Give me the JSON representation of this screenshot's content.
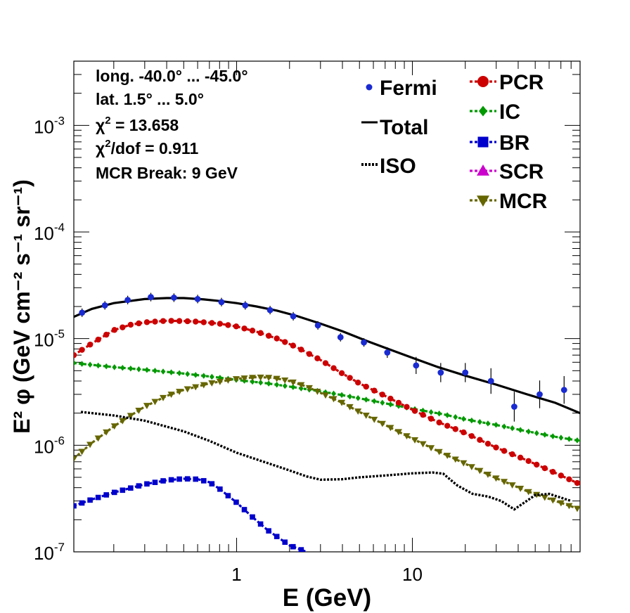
{
  "chart_data": {
    "type": "line",
    "xscale": "log",
    "yscale": "log",
    "xlim": [
      0.1185,
      90
    ],
    "ylim": [
      1e-07,
      0.004
    ],
    "xlabel": "E (GeV)",
    "ylabel": "E² φ (GeV cm⁻² s⁻¹ sr⁻¹)",
    "x_tick_labels": [
      {
        "value": 1,
        "label": "1"
      },
      {
        "value": 10,
        "label": "10"
      }
    ],
    "y_tick_labels": [
      {
        "value": 1e-07,
        "base": "10",
        "exp": "-7"
      },
      {
        "value": 1e-06,
        "base": "10",
        "exp": "-6"
      },
      {
        "value": 1e-05,
        "base": "10",
        "exp": "-5"
      },
      {
        "value": 0.0001,
        "base": "10",
        "exp": "-4"
      },
      {
        "value": 0.001,
        "base": "10",
        "exp": "-3"
      }
    ],
    "info": {
      "longitude": "long. -40.0° ... -45.0°",
      "latitude": "lat. 1.5° ... 5.0°",
      "chi2_prefix": "χ",
      "chi2_value": " = 13.658",
      "chi2dof_prefix": "χ",
      "chi2dof_value": "/dof = 0.911",
      "break_label": "MCR Break:  9 GeV"
    },
    "fermi": {
      "name": "Fermi",
      "color": "#1a2bd1",
      "points": [
        {
          "x": 0.132,
          "y": 1.75e-05,
          "err": 0.04
        },
        {
          "x": 0.178,
          "y": 2.05e-05,
          "err": 0.04
        },
        {
          "x": 0.24,
          "y": 2.3e-05,
          "err": 0.04
        },
        {
          "x": 0.325,
          "y": 2.45e-05,
          "err": 0.04
        },
        {
          "x": 0.44,
          "y": 2.42e-05,
          "err": 0.04
        },
        {
          "x": 0.6,
          "y": 2.35e-05,
          "err": 0.04
        },
        {
          "x": 0.82,
          "y": 2.2e-05,
          "err": 0.04
        },
        {
          "x": 1.12,
          "y": 2.05e-05,
          "err": 0.04
        },
        {
          "x": 1.55,
          "y": 1.85e-05,
          "err": 0.04
        },
        {
          "x": 2.1,
          "y": 1.62e-05,
          "err": 0.04
        },
        {
          "x": 2.9,
          "y": 1.33e-05,
          "err": 0.04
        },
        {
          "x": 3.9,
          "y": 1.03e-05,
          "err": 0.04
        },
        {
          "x": 5.3,
          "y": 9.2e-06,
          "err": 0.04
        },
        {
          "x": 7.2,
          "y": 7.4e-06,
          "err": 0.05
        },
        {
          "x": 10.5,
          "y": 5.6e-06,
          "err": 0.08
        },
        {
          "x": 14.5,
          "y": 4.8e-06,
          "err": 0.09
        },
        {
          "x": 20,
          "y": 4.8e-06,
          "err": 0.09
        },
        {
          "x": 28,
          "y": 4e-06,
          "err": 0.12
        },
        {
          "x": 38,
          "y": 2.3e-06,
          "err": 0.14
        },
        {
          "x": 53,
          "y": 3e-06,
          "err": 0.13
        },
        {
          "x": 73,
          "y": 3.3e-06,
          "err": 0.13
        }
      ]
    },
    "series": [
      {
        "name": "Total",
        "color": "#000000",
        "style": "solid",
        "marker": "none",
        "x": [
          0.1185,
          0.15,
          0.2,
          0.3,
          0.4,
          0.5,
          0.65,
          0.8,
          1,
          1.3,
          1.7,
          2.2,
          3,
          4,
          5.5,
          7,
          10,
          14,
          20,
          30,
          45,
          65,
          90
        ],
        "y": [
          1.6e-05,
          1.9e-05,
          2.15e-05,
          2.35e-05,
          2.4e-05,
          2.4e-05,
          2.33e-05,
          2.25e-05,
          2.15e-05,
          2e-05,
          1.83e-05,
          1.63e-05,
          1.38e-05,
          1.17e-05,
          9.5e-06,
          8.2e-06,
          6.6e-06,
          5.4e-06,
          4.5e-06,
          3.7e-06,
          3e-06,
          2.5e-06,
          2e-06
        ]
      },
      {
        "name": "ISO",
        "color": "#000000",
        "style": "dotted",
        "marker": "none",
        "x": [
          0.13,
          0.2,
          0.3,
          0.5,
          0.7,
          1,
          1.5,
          2,
          2.5,
          3,
          4,
          5,
          7,
          10,
          13,
          15,
          18,
          22,
          27,
          32,
          38,
          42,
          50,
          60,
          80
        ],
        "y": [
          2.05e-06,
          1.9e-06,
          1.7e-06,
          1.35e-06,
          1.1e-06,
          8.5e-07,
          6.8e-07,
          5.8e-07,
          5.1e-07,
          4.75e-07,
          4.8e-07,
          5e-07,
          5.2e-07,
          5.45e-07,
          5.55e-07,
          5.4e-07,
          4.2e-07,
          3.5e-07,
          3.3e-07,
          3e-07,
          2.5e-07,
          2.8e-07,
          3.4e-07,
          3.5e-07,
          3e-07
        ]
      },
      {
        "name": "PCR",
        "color": "#cc0000",
        "style": "dashed",
        "marker": "circle",
        "x": [
          0.1185,
          0.15,
          0.2,
          0.25,
          0.3,
          0.4,
          0.5,
          0.6,
          0.8,
          1,
          1.3,
          1.7,
          2.2,
          3,
          4,
          5,
          7,
          10,
          14,
          20,
          30,
          45,
          65,
          90
        ],
        "y": [
          7e-06,
          9e-06,
          1.2e-05,
          1.35e-05,
          1.42e-05,
          1.47e-05,
          1.46e-05,
          1.44e-05,
          1.38e-05,
          1.3e-05,
          1.16e-05,
          1e-05,
          8.3e-06,
          6.3e-06,
          4.7e-06,
          3.8e-06,
          2.9e-06,
          2.15e-06,
          1.65e-06,
          1.3e-06,
          9.5e-07,
          7.2e-07,
          5.5e-07,
          4.3e-07
        ]
      },
      {
        "name": "IC",
        "color": "#009900",
        "style": "dashed",
        "marker": "diamond",
        "x": [
          0.1185,
          0.2,
          0.3,
          0.5,
          0.8,
          1,
          1.5,
          2,
          3,
          4,
          6,
          10,
          15,
          20,
          30,
          45,
          65,
          90
        ],
        "y": [
          5.9e-06,
          5.4e-06,
          5.1e-06,
          4.7e-06,
          4.3e-06,
          4.1e-06,
          3.8e-06,
          3.55e-06,
          3.2e-06,
          2.95e-06,
          2.6e-06,
          2.2e-06,
          1.95e-06,
          1.75e-06,
          1.55e-06,
          1.35e-06,
          1.2e-06,
          1.1e-06
        ]
      },
      {
        "name": "BR",
        "color": "#0000cc",
        "style": "dashed",
        "marker": "square",
        "x": [
          0.1185,
          0.15,
          0.2,
          0.3,
          0.4,
          0.5,
          0.6,
          0.7,
          0.8,
          1,
          1.2,
          1.5,
          2,
          2.5
        ],
        "y": [
          2.7e-07,
          3.1e-07,
          3.6e-07,
          4.3e-07,
          4.7e-07,
          4.85e-07,
          4.8e-07,
          4.5e-07,
          3.9e-07,
          2.9e-07,
          2.2e-07,
          1.6e-07,
          1.15e-07,
          1e-07
        ]
      },
      {
        "name": "SCR",
        "color": "#cc00cc",
        "style": "dashed",
        "marker": "triangle-up",
        "x": [],
        "y": []
      },
      {
        "name": "MCR",
        "color": "#666600",
        "style": "dashed",
        "marker": "triangle-down",
        "x": [
          0.1185,
          0.15,
          0.2,
          0.25,
          0.3,
          0.4,
          0.5,
          0.7,
          1,
          1.3,
          1.6,
          2,
          2.5,
          3,
          4,
          5,
          7,
          10,
          14,
          20,
          30,
          45,
          65,
          90
        ],
        "y": [
          7.5e-07,
          1.05e-06,
          1.5e-06,
          1.9e-06,
          2.3e-06,
          2.9e-06,
          3.3e-06,
          3.8e-06,
          4.2e-06,
          4.35e-06,
          4.3e-06,
          4e-06,
          3.55e-06,
          3.1e-06,
          2.5e-06,
          2.05e-06,
          1.55e-06,
          1.15e-06,
          8.8e-07,
          6.7e-07,
          4.9e-07,
          3.7e-07,
          3e-07,
          2.5e-07
        ]
      }
    ],
    "legend_left": [
      {
        "name": "Fermi",
        "kind": "point",
        "color": "#1a2bd1"
      },
      {
        "name": "Total",
        "kind": "solid",
        "color": "#000000"
      },
      {
        "name": "ISO",
        "kind": "dotted",
        "color": "#000000"
      }
    ],
    "legend_right": [
      {
        "name": "PCR",
        "marker": "circle",
        "color": "#cc0000"
      },
      {
        "name": "IC",
        "marker": "diamond",
        "color": "#009900"
      },
      {
        "name": "BR",
        "marker": "square",
        "color": "#0000cc"
      },
      {
        "name": "SCR",
        "marker": "triangle-up",
        "color": "#cc00cc"
      },
      {
        "name": "MCR",
        "marker": "triangle-down",
        "color": "#666600"
      }
    ]
  }
}
